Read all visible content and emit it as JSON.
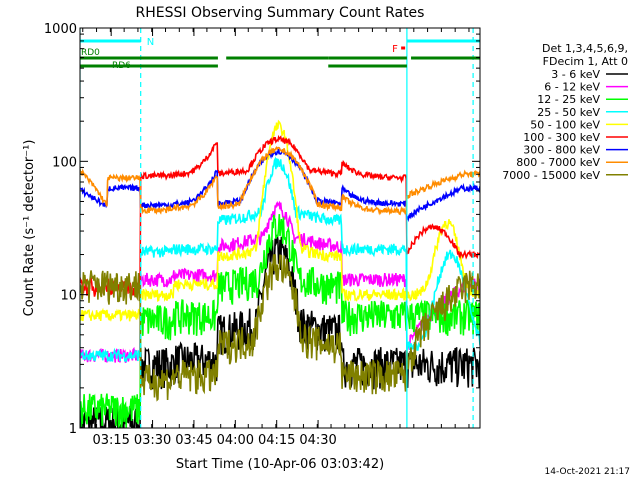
{
  "chart_data": {
    "type": "line",
    "title": "RHESSI Observing Summary Count Rates",
    "xlabel": "Start Time (10-Apr-06 03:03:42)",
    "ylabel": "Count Rate (s⁻¹ detector⁻¹)",
    "yscale": "log",
    "ylim": [
      1,
      1000
    ],
    "xlim_min": [
      0,
      145
    ],
    "y_ticks": [
      {
        "v": 1,
        "label": "1"
      },
      {
        "v": 10,
        "label": "10"
      },
      {
        "v": 100,
        "label": "100"
      },
      {
        "v": 1000,
        "label": "1000"
      }
    ],
    "x_ticks": [
      {
        "m": 11.3,
        "label": "03:15"
      },
      {
        "m": 26.3,
        "label": "03:30"
      },
      {
        "m": 41.3,
        "label": "03:45"
      },
      {
        "m": 56.3,
        "label": "04:00"
      },
      {
        "m": 71.3,
        "label": "04:15"
      },
      {
        "m": 86.3,
        "label": "04:30"
      }
    ],
    "legend_header": [
      "Det 1,3,4,5,6,9,",
      "FDecim 1, Att 0"
    ],
    "series": [
      {
        "name": "3 - 6 keV",
        "color": "#000000",
        "day": [
          3.0,
          3.0,
          3.2,
          20,
          3.0,
          3.0
        ],
        "night": 1.1,
        "rd": 18,
        "ru": 12,
        "peak": 18,
        "spread": 4.5,
        "noise": 0.35
      },
      {
        "name": "6 - 12 keV",
        "color": "#ff00ff",
        "day": [
          13,
          13,
          14,
          30,
          13,
          13
        ],
        "night": 3.5,
        "rd": 18,
        "ru": 12,
        "peak": 30,
        "spread": 4.5,
        "noise": 0.12
      },
      {
        "name": "12 - 25 keV",
        "color": "#00ff00",
        "day": [
          7,
          6.5,
          7,
          26,
          7,
          7
        ],
        "night": 1.4,
        "rd": 18,
        "ru": 12,
        "peak": 26,
        "spread": 4.5,
        "noise": 0.3
      },
      {
        "name": "25 - 50 keV",
        "color": "#00ffff",
        "day": [
          21,
          21,
          22,
          80,
          22,
          22
        ],
        "night": 3.5,
        "rd": 18,
        "ru": 12,
        "peak": 75,
        "spread": 4.0,
        "noise": 0.1
      },
      {
        "name": "50 - 100 keV",
        "color": "#ffff00",
        "day": [
          8,
          10,
          12,
          175,
          10,
          10
        ],
        "night": 7,
        "rd": 10,
        "ru": 10,
        "peak": 170,
        "spread": 3.6,
        "noise": 0.1
      },
      {
        "name": "100 - 300 keV",
        "color": "#ff0000",
        "day": [
          12,
          78,
          80,
          98,
          75,
          72
        ],
        "night": 20,
        "rd": 9,
        "ru": 9,
        "peak": 98,
        "spread": 9,
        "noise": 0.05
      },
      {
        "name": "300 - 800 keV",
        "color": "#0000ff",
        "day": [
          40,
          47,
          48,
          90,
          48,
          50
        ],
        "night": 63,
        "rd": 9,
        "ru": 9,
        "peak": 90,
        "spread": 9,
        "noise": 0.05
      },
      {
        "name": "800 - 7000 keV",
        "color": "#ff8c00",
        "day": [
          40,
          43,
          45,
          95,
          42,
          45
        ],
        "night": 75,
        "rd": 9,
        "ru": 9,
        "peak": 95,
        "spread": 9,
        "noise": 0.05
      },
      {
        "name": "7000 - 15000 keV",
        "color": "#808000",
        "day": [
          2.3,
          2.3,
          2.5,
          14,
          2.5,
          2.5
        ],
        "night": 12,
        "rd": 18,
        "ru": 12,
        "peak": 14,
        "spread": 5,
        "noise": 0.3
      }
    ],
    "saa_bars": [
      {
        "start": 0,
        "end": 22.0
      },
      {
        "start": 118.5,
        "end": 145
      }
    ],
    "saa_label": "N",
    "flare_marker": {
      "m": 117.5,
      "label": "F"
    },
    "rd_labels": [
      "RD0",
      "RD6"
    ],
    "night_segments": [
      {
        "start": 0,
        "end": 50.0
      },
      {
        "start": 90,
        "end": 118.5
      }
    ],
    "day_segments": [
      {
        "start": 0,
        "end": 50.0
      },
      {
        "start": 53.0,
        "end": 90.0
      },
      {
        "start": 90.0,
        "end": 118.5
      },
      {
        "start": 120.0,
        "end": 145
      }
    ],
    "vlines": [
      {
        "m": 0,
        "style": "solid"
      },
      {
        "m": 22.0,
        "style": "dash"
      },
      {
        "m": 118.5,
        "style": "solid"
      },
      {
        "m": 142.5,
        "style": "dash"
      }
    ],
    "timestamp": "14-Oct-2021 21:17"
  }
}
